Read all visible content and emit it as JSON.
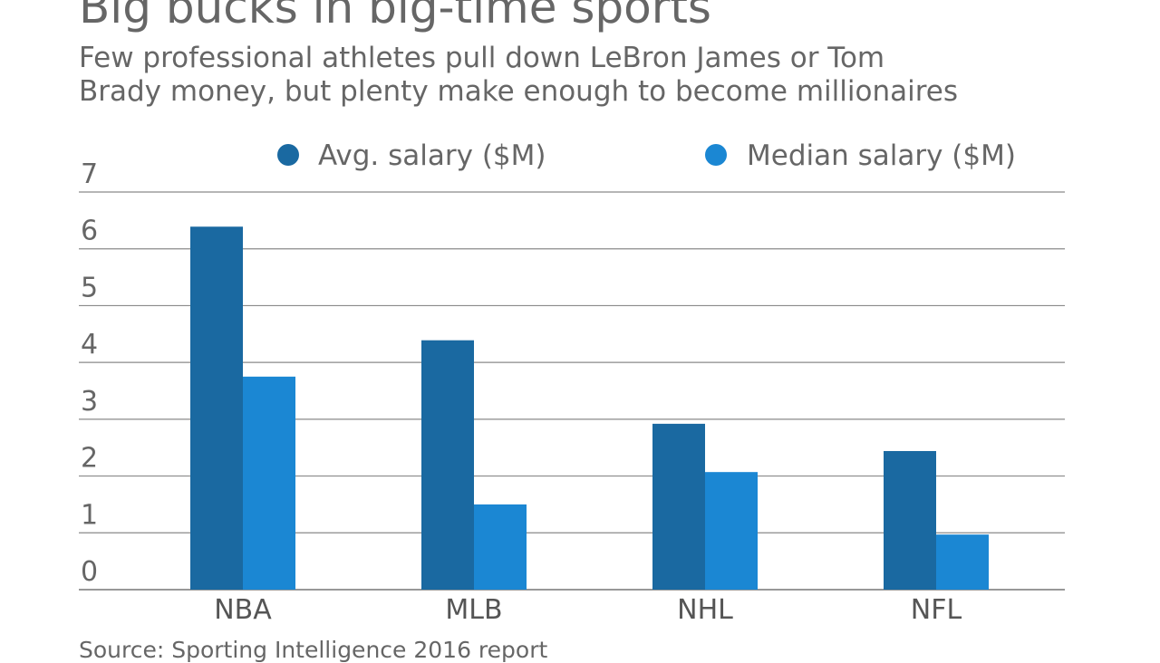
{
  "chart_data": {
    "type": "bar",
    "title": "Big bucks in big-time sports",
    "subtitle_lines": [
      "Few professional athletes pull down LeBron James or Tom",
      "Brady money, but plenty make enough to become millionaires"
    ],
    "source": "Source: Sporting Intelligence 2016 report",
    "categories": [
      "NBA",
      "MLB",
      "NHL",
      "NFL"
    ],
    "series": [
      {
        "name": "Avg. salary ($M)",
        "color": "#1a69a1",
        "values": [
          6.39,
          4.39,
          2.92,
          2.44
        ]
      },
      {
        "name": "Median salary ($M)",
        "color": "#1b87d3",
        "values": [
          3.75,
          1.5,
          2.07,
          0.97
        ]
      }
    ],
    "xlabel": "",
    "ylabel": "",
    "ylim": [
      0,
      7
    ],
    "yticks": [
      "0",
      "1",
      "2",
      "3",
      "4",
      "5",
      "6",
      "7"
    ],
    "grid": true,
    "legend_position": "top"
  }
}
